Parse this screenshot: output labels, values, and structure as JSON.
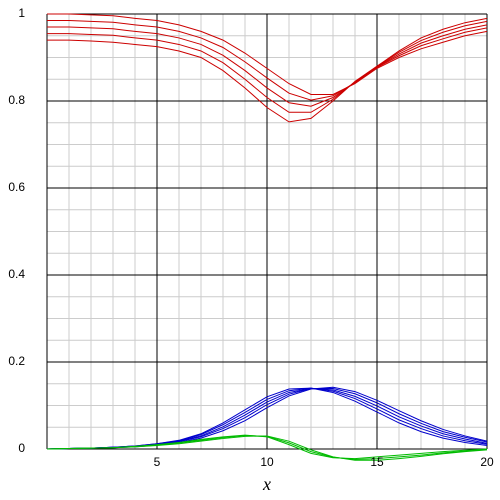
{
  "chart_data": {
    "type": "line",
    "x_label": "x",
    "x": [
      0,
      1,
      2,
      3,
      4,
      5,
      6,
      7,
      8,
      9,
      10,
      11,
      12,
      13,
      14,
      15,
      16,
      17,
      18,
      19,
      20
    ],
    "xlim": [
      0,
      20
    ],
    "xticks": [
      5,
      10,
      15,
      20
    ],
    "ylim": [
      0,
      1
    ],
    "yticks": [
      0,
      0.2,
      0.4,
      0.6,
      0.8,
      1
    ],
    "grid": true,
    "minor_grid": true,
    "series": [
      {
        "color": "#cc0000",
        "values": [
          1.0,
          1.0,
          0.998,
          0.996,
          0.99,
          0.985,
          0.975,
          0.96,
          0.94,
          0.91,
          0.875,
          0.84,
          0.815,
          0.815,
          0.84,
          0.875,
          0.9,
          0.92,
          0.935,
          0.95,
          0.96
        ]
      },
      {
        "color": "#cc0000",
        "values": [
          0.985,
          0.985,
          0.983,
          0.981,
          0.975,
          0.97,
          0.96,
          0.945,
          0.923,
          0.89,
          0.853,
          0.818,
          0.802,
          0.812,
          0.842,
          0.877,
          0.904,
          0.927,
          0.943,
          0.958,
          0.968
        ]
      },
      {
        "color": "#cc0000",
        "values": [
          0.97,
          0.97,
          0.968,
          0.966,
          0.96,
          0.955,
          0.945,
          0.93,
          0.905,
          0.87,
          0.83,
          0.796,
          0.788,
          0.808,
          0.843,
          0.878,
          0.908,
          0.933,
          0.95,
          0.965,
          0.975
        ]
      },
      {
        "color": "#cc0000",
        "values": [
          0.955,
          0.955,
          0.953,
          0.951,
          0.945,
          0.94,
          0.93,
          0.915,
          0.888,
          0.85,
          0.808,
          0.774,
          0.774,
          0.804,
          0.844,
          0.879,
          0.912,
          0.939,
          0.958,
          0.973,
          0.983
        ]
      },
      {
        "color": "#cc0000",
        "values": [
          0.94,
          0.94,
          0.938,
          0.935,
          0.93,
          0.925,
          0.915,
          0.9,
          0.87,
          0.83,
          0.785,
          0.752,
          0.76,
          0.8,
          0.845,
          0.88,
          0.915,
          0.945,
          0.965,
          0.98,
          0.99
        ]
      },
      {
        "color": "#0000cc",
        "values": [
          0,
          0.001,
          0.002,
          0.004,
          0.007,
          0.012,
          0.02,
          0.035,
          0.06,
          0.09,
          0.12,
          0.138,
          0.14,
          0.13,
          0.11,
          0.085,
          0.06,
          0.04,
          0.025,
          0.015,
          0.008
        ]
      },
      {
        "color": "#0000cc",
        "values": [
          0,
          0.001,
          0.002,
          0.004,
          0.007,
          0.012,
          0.019,
          0.033,
          0.056,
          0.084,
          0.114,
          0.134,
          0.14,
          0.133,
          0.116,
          0.092,
          0.067,
          0.047,
          0.03,
          0.019,
          0.011
        ]
      },
      {
        "color": "#0000cc",
        "values": [
          0,
          0.001,
          0.002,
          0.004,
          0.006,
          0.011,
          0.018,
          0.03,
          0.051,
          0.078,
          0.108,
          0.13,
          0.139,
          0.136,
          0.121,
          0.099,
          0.074,
          0.053,
          0.035,
          0.023,
          0.013
        ]
      },
      {
        "color": "#0000cc",
        "values": [
          0,
          0.001,
          0.002,
          0.004,
          0.006,
          0.01,
          0.017,
          0.028,
          0.047,
          0.072,
          0.102,
          0.126,
          0.139,
          0.139,
          0.127,
          0.106,
          0.081,
          0.059,
          0.04,
          0.027,
          0.016
        ]
      },
      {
        "color": "#0000cc",
        "values": [
          0,
          0.001,
          0.002,
          0.003,
          0.005,
          0.009,
          0.015,
          0.025,
          0.042,
          0.065,
          0.095,
          0.122,
          0.138,
          0.142,
          0.132,
          0.112,
          0.088,
          0.065,
          0.045,
          0.03,
          0.018
        ]
      },
      {
        "color": "#00bb00",
        "values": [
          0,
          0.001,
          0.002,
          0.003,
          0.006,
          0.01,
          0.015,
          0.022,
          0.028,
          0.032,
          0.028,
          0.01,
          -0.01,
          -0.02,
          -0.022,
          -0.018,
          -0.014,
          -0.01,
          -0.006,
          -0.003,
          0
        ]
      },
      {
        "color": "#00bb00",
        "values": [
          0,
          0.001,
          0.002,
          0.003,
          0.006,
          0.009,
          0.014,
          0.02,
          0.026,
          0.031,
          0.029,
          0.014,
          -0.006,
          -0.019,
          -0.024,
          -0.022,
          -0.018,
          -0.014,
          -0.009,
          -0.005,
          -0.001
        ]
      },
      {
        "color": "#00bb00",
        "values": [
          0,
          0.001,
          0.002,
          0.003,
          0.005,
          0.008,
          0.012,
          0.018,
          0.024,
          0.029,
          0.03,
          0.018,
          -0.002,
          -0.018,
          -0.026,
          -0.026,
          -0.022,
          -0.017,
          -0.011,
          -0.006,
          -0.002
        ]
      }
    ]
  }
}
